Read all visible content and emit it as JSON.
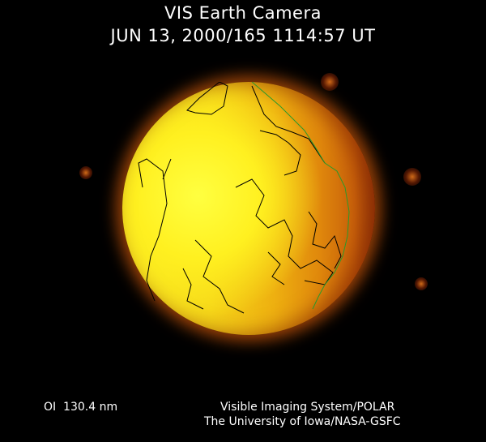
{
  "header": {
    "title": "VIS Earth Camera",
    "timestamp": "JUN 13, 2000/165 1114:57 UT"
  },
  "footer": {
    "wavelength": "OI  130.4 nm",
    "credit_line1": "Visible Imaging System/POLAR",
    "credit_line2": "The University of Iowa/NASA-GSFC"
  },
  "colors": {
    "dayside": "#f7e820",
    "nightside": "#c8600a",
    "coastline": "#000000",
    "terminator_line": "#2a9a2a"
  }
}
